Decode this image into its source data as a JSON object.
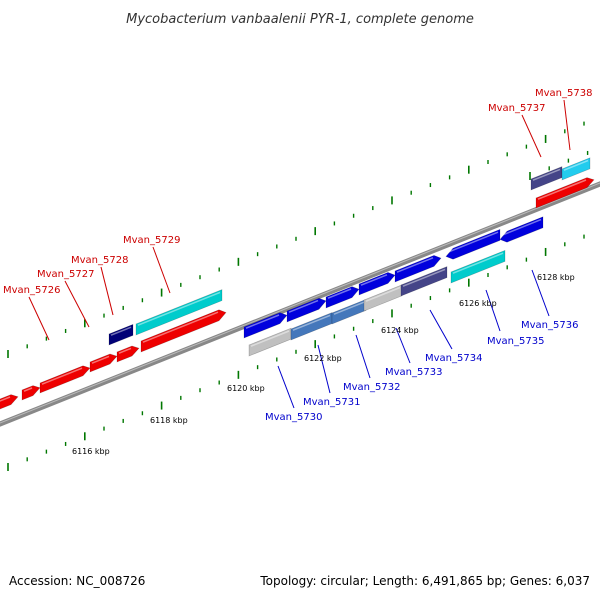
{
  "title": "Mycobacterium vanbaalenii PYR-1, complete genome",
  "footer": {
    "accession": "Accession: NC_008726",
    "summary": "Topology: circular; Length: 6,491,865 bp; Genes: 6,037"
  },
  "colors": {
    "forward": "#0000dd",
    "reverse": "#ee0000",
    "cyan": "#00cccc",
    "navy": "#000077",
    "slate": "#444488",
    "grey": "#c0c0c0",
    "steel": "#4477bb",
    "sky": "#22ccee",
    "tick": "#007700",
    "backbone": "#888888",
    "label_fwd": "#0000cc",
    "label_rev": "#cc0000"
  },
  "axis_labels": [
    {
      "kbp": 6116,
      "text": "6116 kbp"
    },
    {
      "kbp": 6118,
      "text": "6118 kbp"
    },
    {
      "kbp": 6120,
      "text": "6120 kbp"
    },
    {
      "kbp": 6122,
      "text": "6122 kbp"
    },
    {
      "kbp": 6124,
      "text": "6124 kbp"
    },
    {
      "kbp": 6126,
      "text": "6126 kbp"
    },
    {
      "kbp": 6128,
      "text": "6128 kbp"
    }
  ],
  "genes": [
    {
      "id": "Mvan_5726",
      "label": "Mvan_5726",
      "strand": "reverse"
    },
    {
      "id": "Mvan_5727",
      "label": "Mvan_5727",
      "strand": "reverse"
    },
    {
      "id": "Mvan_5728",
      "label": "Mvan_5728",
      "strand": "reverse"
    },
    {
      "id": "Mvan_5729",
      "label": "Mvan_5729",
      "strand": "reverse"
    },
    {
      "id": "Mvan_5730",
      "label": "Mvan_5730",
      "strand": "forward"
    },
    {
      "id": "Mvan_5731",
      "label": "Mvan_5731",
      "strand": "forward"
    },
    {
      "id": "Mvan_5732",
      "label": "Mvan_5732",
      "strand": "forward"
    },
    {
      "id": "Mvan_5733",
      "label": "Mvan_5733",
      "strand": "forward"
    },
    {
      "id": "Mvan_5734",
      "label": "Mvan_5734",
      "strand": "forward"
    },
    {
      "id": "Mvan_5735",
      "label": "Mvan_5735",
      "strand": "forward"
    },
    {
      "id": "Mvan_5736",
      "label": "Mvan_5736",
      "strand": "forward"
    },
    {
      "id": "Mvan_5737",
      "label": "Mvan_5737",
      "strand": "reverse"
    },
    {
      "id": "Mvan_5738",
      "label": "Mvan_5738",
      "strand": "reverse"
    }
  ]
}
